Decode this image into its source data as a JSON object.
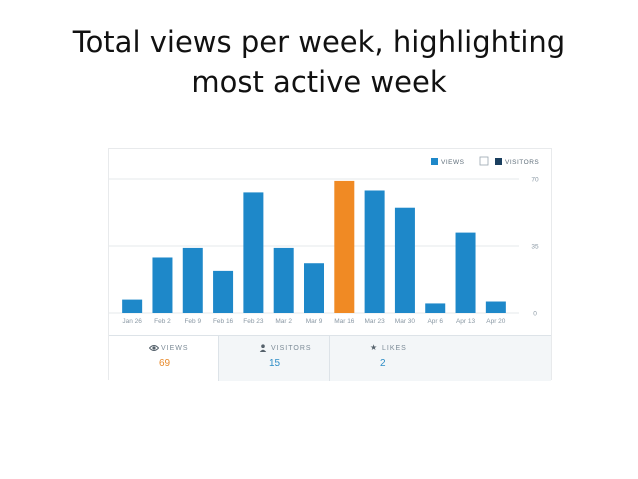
{
  "title_lines": [
    "Total views per week, highlighting",
    "most active week"
  ],
  "chart_data": {
    "type": "bar",
    "categories": [
      "Jan 26",
      "Feb 2",
      "Feb 9",
      "Feb 16",
      "Feb 23",
      "Mar 2",
      "Mar 9",
      "Mar 16",
      "Mar 23",
      "Mar 30",
      "Apr 6",
      "Apr 13",
      "Apr 20"
    ],
    "series": [
      {
        "name": "VIEWS",
        "values": [
          7,
          29,
          34,
          22,
          63,
          34,
          26,
          69,
          64,
          55,
          5,
          42,
          6
        ]
      }
    ],
    "highlight_index": 7,
    "colors": {
      "bar": "#1e88c9",
      "highlight": "#f08a24",
      "visitors": "#1a3f5f",
      "grid": "#e4e8eb",
      "tick": "#8a98a4"
    },
    "ylim": [
      0,
      70
    ],
    "yticks": [
      0,
      35,
      70
    ],
    "legend": [
      "VIEWS",
      "VISITORS"
    ],
    "legend_position": "top-right",
    "grid": true
  },
  "stats": [
    {
      "label": "VIEWS",
      "value": "69",
      "icon": "eye-icon"
    },
    {
      "label": "VISITORS",
      "value": "15",
      "icon": "person-icon"
    },
    {
      "label": "LIKES",
      "value": "2",
      "icon": "star-icon"
    }
  ]
}
